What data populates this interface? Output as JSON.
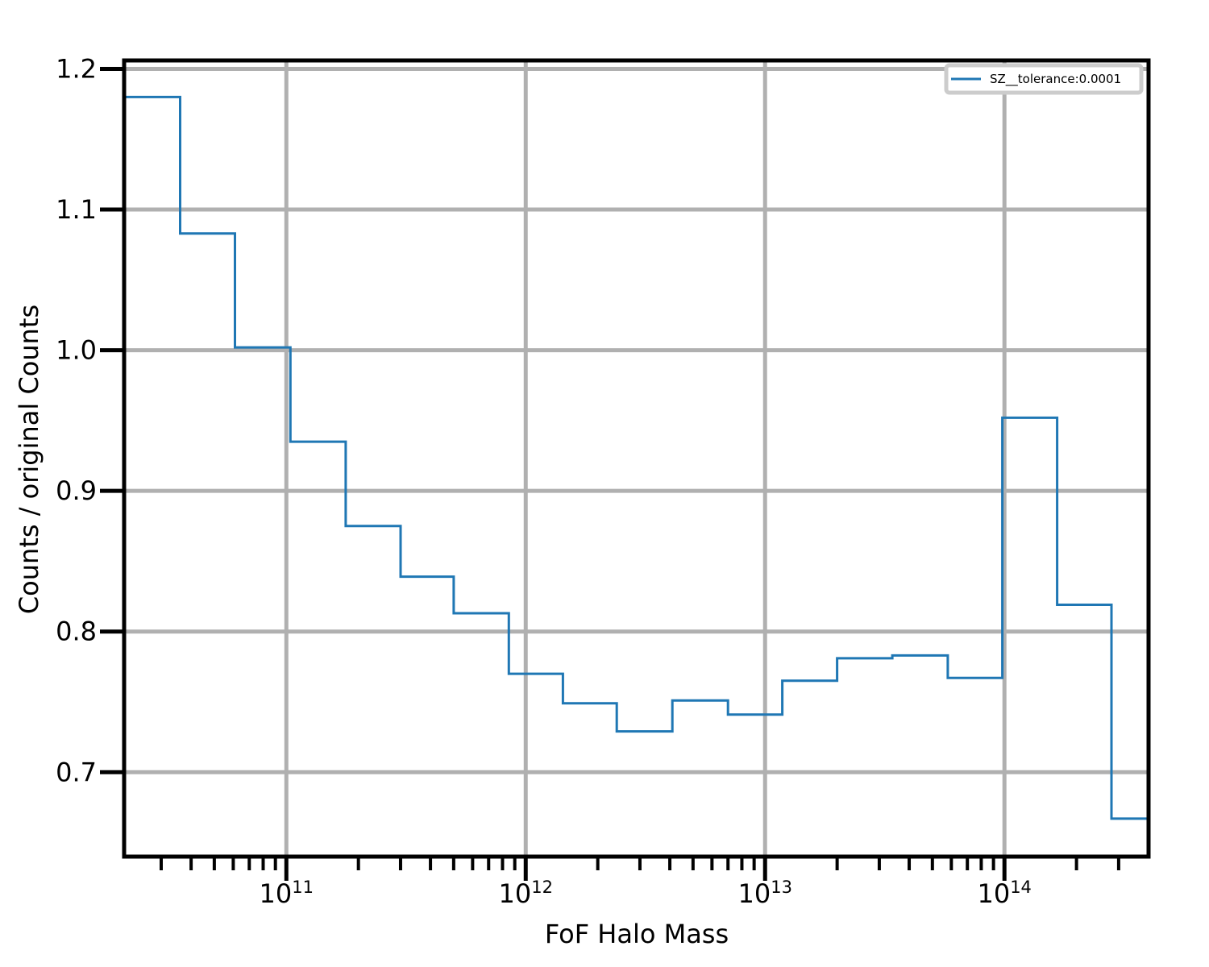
{
  "chart_data": {
    "type": "line",
    "drawstyle": "steps",
    "xscale": "log",
    "xlabel": "FoF Halo Mass",
    "ylabel": "Counts / original Counts",
    "xlim": [
      21000000000.0,
      400000000000000.0
    ],
    "ylim": [
      0.64,
      1.206
    ],
    "grid": true,
    "legend_position": "top-right",
    "x_tick_labels": [
      {
        "base": "10",
        "exp": "11",
        "value": 100000000000.0
      },
      {
        "base": "10",
        "exp": "12",
        "value": 1000000000000.0
      },
      {
        "base": "10",
        "exp": "13",
        "value": 10000000000000.0
      },
      {
        "base": "10",
        "exp": "14",
        "value": 100000000000000.0
      }
    ],
    "y_tick_labels": [
      "0.7",
      "0.8",
      "0.9",
      "1.0",
      "1.1",
      "1.2"
    ],
    "y_ticks": [
      0.7,
      0.8,
      0.9,
      1.0,
      1.1,
      1.2
    ],
    "bin_edges": [
      21000000000.0,
      36000000000.0,
      61000000000.0,
      104000000000.0,
      177000000000.0,
      300000000000.0,
      500000000000.0,
      850000000000.0,
      1430000000000.0,
      2400000000000.0,
      4100000000000.0,
      7000000000000.0,
      11800000000000.0,
      20000000000000.0,
      34000000000000.0,
      58000000000000.0,
      98000000000000.0,
      166000000000000.0,
      280000000000000.0,
      400000000000000.0
    ],
    "series": [
      {
        "name": "SZ__tolerance:0.0001",
        "color": "#1f77b4",
        "values": [
          1.18,
          1.083,
          1.002,
          0.935,
          0.875,
          0.839,
          0.813,
          0.77,
          0.749,
          0.729,
          0.751,
          0.741,
          0.765,
          0.781,
          0.783,
          0.767,
          0.952,
          0.819,
          0.667
        ]
      }
    ]
  }
}
